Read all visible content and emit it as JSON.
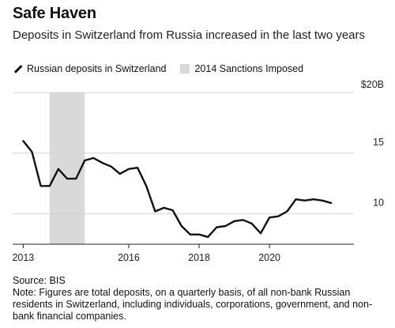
{
  "header": {
    "title": "Safe Haven",
    "subtitle": "Deposits in Switzerland from Russia increased in the last two years"
  },
  "legend": {
    "line_label": "Russian deposits in Switzerland",
    "band_label": "2014 Sanctions Imposed"
  },
  "colors": {
    "line": "#111111",
    "band": "#d9d9d9",
    "grid": "#d4d4d4",
    "axis": "#222222"
  },
  "chart_data": {
    "type": "line",
    "title": "Safe Haven",
    "ylim": [
      7.5,
      20
    ],
    "xlim": [
      2012.7,
      2022.4
    ],
    "y_ticks": [
      {
        "value": 20,
        "label": "$20B"
      },
      {
        "value": 15,
        "label": "15"
      },
      {
        "value": 10,
        "label": "10"
      }
    ],
    "x_ticks": [
      {
        "value": 2013,
        "label": "2013"
      },
      {
        "value": 2016,
        "label": "2016"
      },
      {
        "value": 2018,
        "label": "2018"
      },
      {
        "value": 2020,
        "label": "2020"
      }
    ],
    "band": {
      "name": "2014 Sanctions Imposed",
      "x0": 2013.75,
      "x1": 2014.75
    },
    "series": [
      {
        "name": "Russian deposits in Switzerland",
        "x": [
          2013.0,
          2013.25,
          2013.5,
          2013.75,
          2014.0,
          2014.25,
          2014.5,
          2014.75,
          2015.0,
          2015.25,
          2015.5,
          2015.75,
          2016.0,
          2016.25,
          2016.5,
          2016.75,
          2017.0,
          2017.25,
          2017.5,
          2017.75,
          2018.0,
          2018.25,
          2018.5,
          2018.75,
          2019.0,
          2019.25,
          2019.5,
          2019.75,
          2020.0,
          2020.25,
          2020.5,
          2020.75,
          2021.0,
          2021.25,
          2021.5,
          2021.75
        ],
        "values": [
          16.0,
          15.1,
          12.3,
          12.3,
          13.7,
          12.9,
          12.9,
          14.4,
          14.6,
          14.2,
          13.9,
          13.3,
          13.7,
          13.8,
          12.3,
          10.2,
          10.5,
          10.3,
          9.0,
          8.3,
          8.3,
          8.1,
          8.9,
          9.0,
          9.4,
          9.5,
          9.2,
          8.4,
          9.7,
          9.8,
          10.2,
          11.2,
          11.1,
          11.2,
          11.1,
          10.9
        ]
      }
    ]
  },
  "footer": {
    "source": "Source: BIS",
    "note": "Note: Figures are total deposits, on a quarterly basis, of all non-bank Russian residents in Switzerland, including individuals, corporations, government, and non-bank financial companies."
  }
}
